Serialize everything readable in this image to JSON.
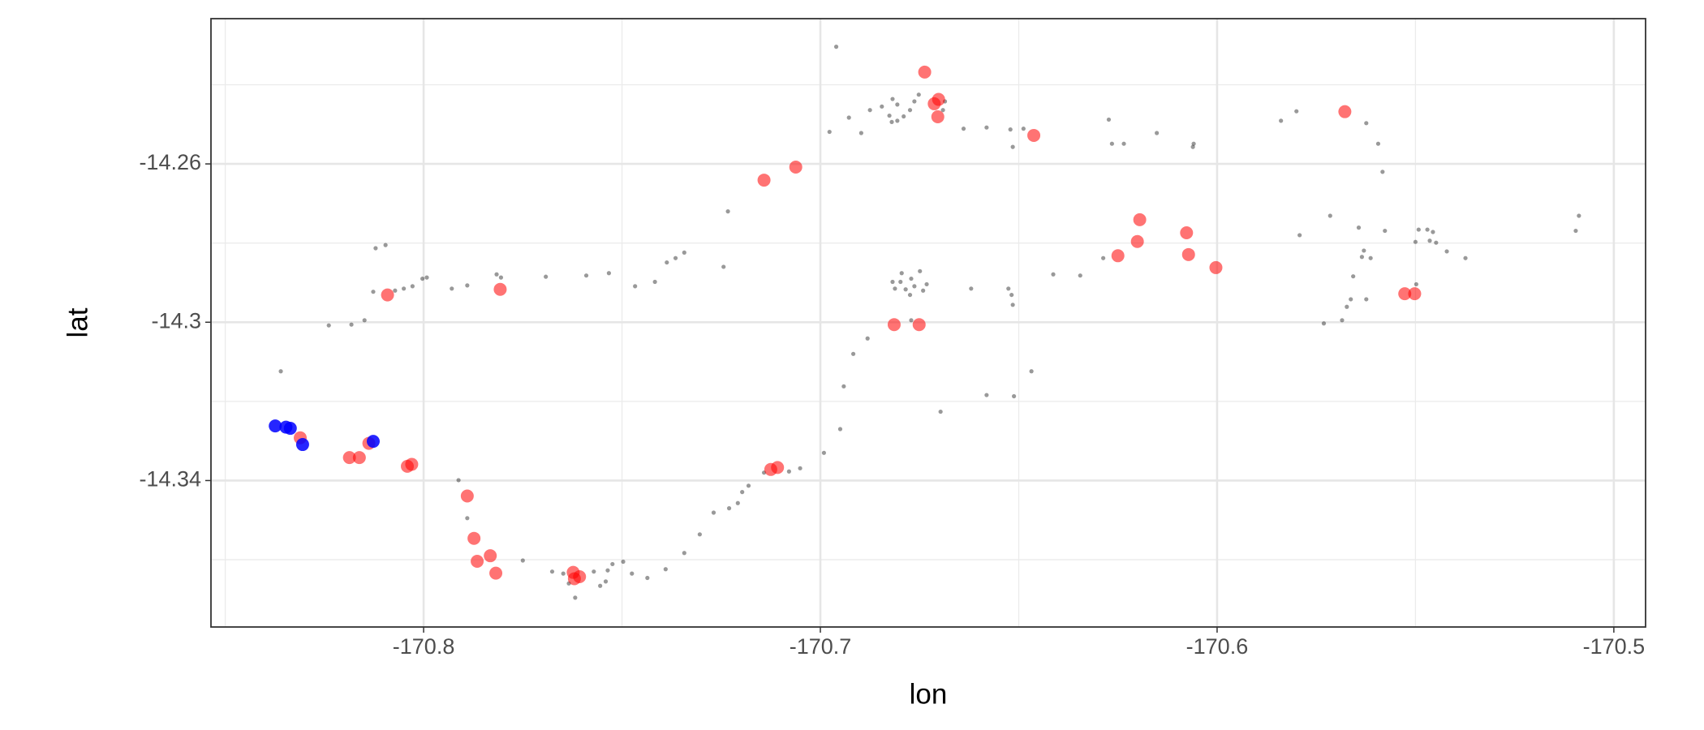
{
  "chart_data": {
    "type": "scatter",
    "xlabel": "lon",
    "ylabel": "lat",
    "xlim": [
      -170.8536,
      -170.492
    ],
    "ylim": [
      -14.377,
      -14.2233
    ],
    "xticks": [
      -170.8,
      -170.7,
      -170.6,
      -170.5
    ],
    "yticks": [
      -14.26,
      -14.3,
      -14.34
    ],
    "x_minor_grid": [
      -170.85,
      -170.75,
      -170.65,
      -170.55
    ],
    "y_minor_grid": [
      -14.24,
      -14.28,
      -14.32,
      -14.36
    ],
    "grid": true,
    "series": [
      {
        "color": "#000000",
        "alpha": 0.4,
        "size": 2.6,
        "x": [
          -170.696,
          -170.836,
          -170.8121,
          -170.8096,
          -170.8239,
          -170.8182,
          -170.8149,
          -170.8127,
          -170.8072,
          -170.805,
          -170.8028,
          -170.8003,
          -170.7992,
          -170.7929,
          -170.789,
          -170.7816,
          -170.7805,
          -170.7692,
          -170.759,
          -170.7533,
          -170.7467,
          -170.7417,
          -170.7387,
          -170.7365,
          -170.7343,
          -170.7244,
          -170.7233,
          -170.6977,
          -170.6928,
          -170.6897,
          -170.6875,
          -170.6845,
          -170.6818,
          -170.6806,
          -170.6826,
          -170.682,
          -170.6806,
          -170.679,
          -170.6774,
          -170.6763,
          -170.6752,
          -170.6691,
          -170.6686,
          -170.6639,
          -170.6581,
          -170.6521,
          -170.6515,
          -170.6488,
          -170.6273,
          -170.6265,
          -170.6235,
          -170.6152,
          -170.6061,
          -170.6059,
          -170.5839,
          -170.58,
          -170.5624,
          -170.5594,
          -170.5583,
          -170.5792,
          -170.5715,
          -170.5643,
          -170.5635,
          -170.563,
          -170.5613,
          -170.5657,
          -170.5624,
          -170.5663,
          -170.5673,
          -170.5731,
          -170.5685,
          -170.5577,
          -170.5498,
          -170.55,
          -170.5492,
          -170.547,
          -170.5456,
          -170.5464,
          -170.5448,
          -170.5421,
          -170.5374,
          -170.5088,
          -170.5096,
          -170.6287,
          -170.6345,
          -170.6413,
          -170.6526,
          -170.6518,
          -170.6515,
          -170.662,
          -170.6818,
          -170.6812,
          -170.6798,
          -170.6795,
          -170.6785,
          -170.6771,
          -170.6763,
          -170.6749,
          -170.6741,
          -170.6732,
          -170.6774,
          -170.6881,
          -170.6917,
          -170.6941,
          -170.695,
          -170.6991,
          -170.7051,
          -170.7079,
          -170.7142,
          -170.7181,
          -170.7197,
          -170.7208,
          -170.723,
          -170.7269,
          -170.7304,
          -170.7343,
          -170.739,
          -170.7436,
          -170.7475,
          -170.7497,
          -170.7524,
          -170.7536,
          -170.7541,
          -170.7555,
          -170.7571,
          -170.7618,
          -170.7634,
          -170.7648,
          -170.7676,
          -170.775,
          -170.789,
          -170.7912,
          -170.6512,
          -170.6468,
          -170.6581,
          -170.6697,
          -170.6771
        ],
        "y": [
          -14.2304,
          -14.3124,
          -14.2813,
          -14.2805,
          -14.3008,
          -14.3006,
          -14.2995,
          -14.2923,
          -14.292,
          -14.2915,
          -14.2909,
          -14.289,
          -14.2887,
          -14.2915,
          -14.2907,
          -14.2879,
          -14.2887,
          -14.2885,
          -14.2882,
          -14.2876,
          -14.2909,
          -14.2898,
          -14.2849,
          -14.2838,
          -14.2824,
          -14.286,
          -14.272,
          -14.2519,
          -14.2483,
          -14.2522,
          -14.2464,
          -14.2455,
          -14.2436,
          -14.245,
          -14.2478,
          -14.2494,
          -14.2491,
          -14.248,
          -14.2464,
          -14.2442,
          -14.2425,
          -14.2464,
          -14.2442,
          -14.2511,
          -14.2508,
          -14.2513,
          -14.2557,
          -14.2511,
          -14.2488,
          -14.2549,
          -14.2549,
          -14.2522,
          -14.2557,
          -14.2549,
          -14.2491,
          -14.2467,
          -14.2497,
          -14.2549,
          -14.262,
          -14.278,
          -14.2731,
          -14.2761,
          -14.2835,
          -14.2819,
          -14.2838,
          -14.2884,
          -14.2942,
          -14.2942,
          -14.2961,
          -14.3003,
          -14.2995,
          -14.2769,
          -14.2904,
          -14.2797,
          -14.2766,
          -14.2766,
          -14.2772,
          -14.2794,
          -14.2799,
          -14.2821,
          -14.2838,
          -14.2731,
          -14.2769,
          -14.2838,
          -14.2882,
          -14.2879,
          -14.2915,
          -14.2931,
          -14.2956,
          -14.2915,
          -14.2898,
          -14.2915,
          -14.2898,
          -14.2876,
          -14.2917,
          -14.289,
          -14.2909,
          -14.2871,
          -14.292,
          -14.2904,
          -14.2931,
          -14.3041,
          -14.308,
          -14.3162,
          -14.327,
          -14.333,
          -14.3369,
          -14.3377,
          -14.338,
          -14.3413,
          -14.3429,
          -14.3457,
          -14.347,
          -14.3481,
          -14.3536,
          -14.3583,
          -14.3624,
          -14.3646,
          -14.3635,
          -14.3605,
          -14.3611,
          -14.3627,
          -14.3655,
          -14.3666,
          -14.363,
          -14.3696,
          -14.366,
          -14.3635,
          -14.363,
          -14.3602,
          -14.3495,
          -14.3399,
          -14.3187,
          -14.3124,
          -14.3184,
          -14.3226,
          -14.2995
        ]
      },
      {
        "color": "#ff0000",
        "alpha": 0.55,
        "size": 8,
        "x": [
          -170.6737,
          -170.6702,
          -170.6713,
          -170.6704,
          -170.5678,
          -170.6462,
          -170.7142,
          -170.7062,
          -170.8091,
          -170.7807,
          -170.6195,
          -170.6201,
          -170.625,
          -170.6077,
          -170.6072,
          -170.6003,
          -170.5527,
          -170.5502,
          -170.6814,
          -170.6751,
          -170.8311,
          -170.8187,
          -170.8162,
          -170.8138,
          -170.8041,
          -170.803,
          -170.7125,
          -170.7108,
          -170.789,
          -170.7873,
          -170.7865,
          -170.7832,
          -170.7818,
          -170.7623,
          -170.7607,
          -170.762
        ],
        "y": [
          -14.2368,
          -14.2437,
          -14.2448,
          -14.2481,
          -14.2468,
          -14.2528,
          -14.2641,
          -14.2608,
          -14.2931,
          -14.2917,
          -14.2741,
          -14.2796,
          -14.2832,
          -14.2774,
          -14.2829,
          -14.2862,
          -14.2928,
          -14.2928,
          -14.3006,
          -14.3006,
          -14.3292,
          -14.3342,
          -14.3342,
          -14.3306,
          -14.3364,
          -14.3359,
          -14.3372,
          -14.3367,
          -14.3439,
          -14.3546,
          -14.3604,
          -14.359,
          -14.3634,
          -14.3632,
          -14.3643,
          -14.3648
        ]
      },
      {
        "color": "#0000ff",
        "alpha": 0.85,
        "size": 8,
        "x": [
          -170.8374,
          -170.8347,
          -170.8336,
          -170.8305,
          -170.8127
        ],
        "y": [
          -14.3262,
          -14.3265,
          -14.3268,
          -14.3309,
          -14.3301
        ]
      }
    ]
  }
}
